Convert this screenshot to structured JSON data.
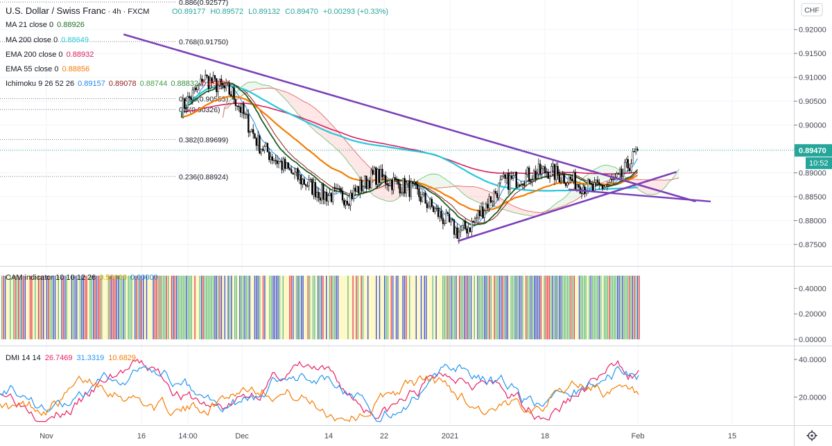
{
  "header": {
    "symbol": "U.S. Dollar / Swiss Franc",
    "interval": "4h",
    "exchange": "FXCM",
    "open": "O0.89177",
    "high": "H0.89572",
    "low": "L0.89132",
    "close": "C0.89470",
    "change": "+0.00293 (+0.33%)",
    "currency_badge": "CHF"
  },
  "legend": {
    "ma21": {
      "label": "MA 21 close 0",
      "value": "0.88926",
      "color": "#1b6e1b"
    },
    "ma200": {
      "label": "MA 200 close 0",
      "value": "0.88649",
      "color": "#26c6da"
    },
    "ema200": {
      "label": "EMA 200 close 0",
      "value": "0.88932",
      "color": "#d81b60"
    },
    "ema55": {
      "label": "EMA 55 close 0",
      "value": "0.88856",
      "color": "#f57c00"
    },
    "ichimoku": {
      "label": "Ichimoku 9 26 52 26",
      "values": [
        "0.89157",
        "0.89078",
        "0.88744",
        "0.88832",
        "0.89053"
      ],
      "colors": [
        "#1e88e5",
        "#8d1b1b",
        "#43a047",
        "#388e3c",
        "#e53935"
      ]
    }
  },
  "price_axis": {
    "ticks": [
      "0.92000",
      "0.91500",
      "0.91000",
      "0.90500",
      "0.90000",
      "0.89500",
      "0.89000",
      "0.88500",
      "0.88000",
      "0.87500"
    ],
    "last_price": "0.89470",
    "countdown": "10:52",
    "last_price_color": "#26a69a"
  },
  "fib_levels": [
    {
      "label": "0.886(0.92577)",
      "price": 0.92577
    },
    {
      "label": "0.768(0.91750)",
      "price": 0.9175
    },
    {
      "label": "0.618(0.90555)",
      "price": 0.90555
    },
    {
      "label": "0.5(0.90326)",
      "price": 0.90326
    },
    {
      "label": "0.382(0.89699)",
      "price": 0.89699
    },
    {
      "label": "0.236(0.88924)",
      "price": 0.88924
    }
  ],
  "cam": {
    "label": "CAM indicator 10 10 12 26",
    "v1": "0.50000",
    "v2": "0.00000",
    "v1_color": "#c9a100",
    "v2_color": "#1e88e5",
    "ticks": [
      "0.40000",
      "0.20000",
      "0.00000"
    ],
    "colors": {
      "green": "#66bb6a",
      "yellow": "#fff59d",
      "blue": "#3f51b5",
      "red": "#e53935"
    }
  },
  "dmi": {
    "label": "DMI 14 14",
    "plus": "26.7469",
    "minus": "31.3319",
    "adx": "10.6829",
    "plus_color": "#e91e63",
    "minus_color": "#2196f3",
    "adx_color": "#f57c00",
    "ticks": [
      "40.0000",
      "20.0000"
    ]
  },
  "time_axis": {
    "labels": [
      "Nov",
      "16",
      "14:00",
      "Dec",
      "14",
      "22",
      "2021",
      "18",
      "Feb",
      "15"
    ]
  },
  "chart_data": [
    {
      "type": "candlestick",
      "title": "U.S. Dollar / Swiss Franc 4h FXCM",
      "ylim": [
        0.8705,
        0.9262
      ],
      "xlabels": [
        "Nov",
        "16",
        "14:00",
        "Dec",
        "14",
        "22",
        "2021",
        "18",
        "Feb",
        "15"
      ],
      "close_path": {
        "x": [
          "Oct 27",
          "Oct 30",
          "Nov 2",
          "Nov 6",
          "Nov 9",
          "Nov 11",
          "Nov 13",
          "Nov 18",
          "Nov 24",
          "Nov 30",
          "Dec 4",
          "Dec 9",
          "Dec 14",
          "Dec 18",
          "Dec 22",
          "Dec 28",
          "Jan 4",
          "Jan 6",
          "Jan 11",
          "Jan 18",
          "Jan 25",
          "Jan 29",
          "Feb 1"
        ],
        "y": [
          0.9035,
          0.9085,
          0.9155,
          0.9072,
          0.8985,
          0.9165,
          0.919,
          0.9135,
          0.911,
          0.9065,
          0.896,
          0.89,
          0.8855,
          0.885,
          0.8895,
          0.8865,
          0.8775,
          0.879,
          0.888,
          0.8905,
          0.8865,
          0.8885,
          0.8947
        ]
      },
      "series": [
        {
          "name": "MA 21 close 0",
          "last": 0.88926
        },
        {
          "name": "MA 200 close 0",
          "last": 0.88649
        },
        {
          "name": "EMA 200 close 0",
          "last": 0.88932
        },
        {
          "name": "EMA 55 close 0",
          "last": 0.88856
        }
      ],
      "trendlines": [
        {
          "from": [
            "Nov 13",
            0.919
          ],
          "to": [
            "Feb 10",
            0.884
          ]
        },
        {
          "from": [
            "Jan 4",
            0.8757
          ],
          "to": [
            "Feb 7",
            0.8902
          ]
        }
      ],
      "last_price": 0.8947
    },
    {
      "type": "bar",
      "title": "CAM indicator 10 10 12 26",
      "ylim": [
        0,
        0.5
      ],
      "ticks": [
        0.4,
        0.2,
        0.0
      ],
      "values_legend": [
        0.5,
        0.0
      ]
    },
    {
      "type": "line",
      "title": "DMI 14 14",
      "ylim": [
        5,
        47
      ],
      "ticks": [
        40,
        20
      ],
      "series": [
        {
          "name": "+DI",
          "last": 26.7469
        },
        {
          "name": "-DI",
          "last": 31.3319
        },
        {
          "name": "ADX",
          "last": 10.6829
        }
      ]
    }
  ]
}
